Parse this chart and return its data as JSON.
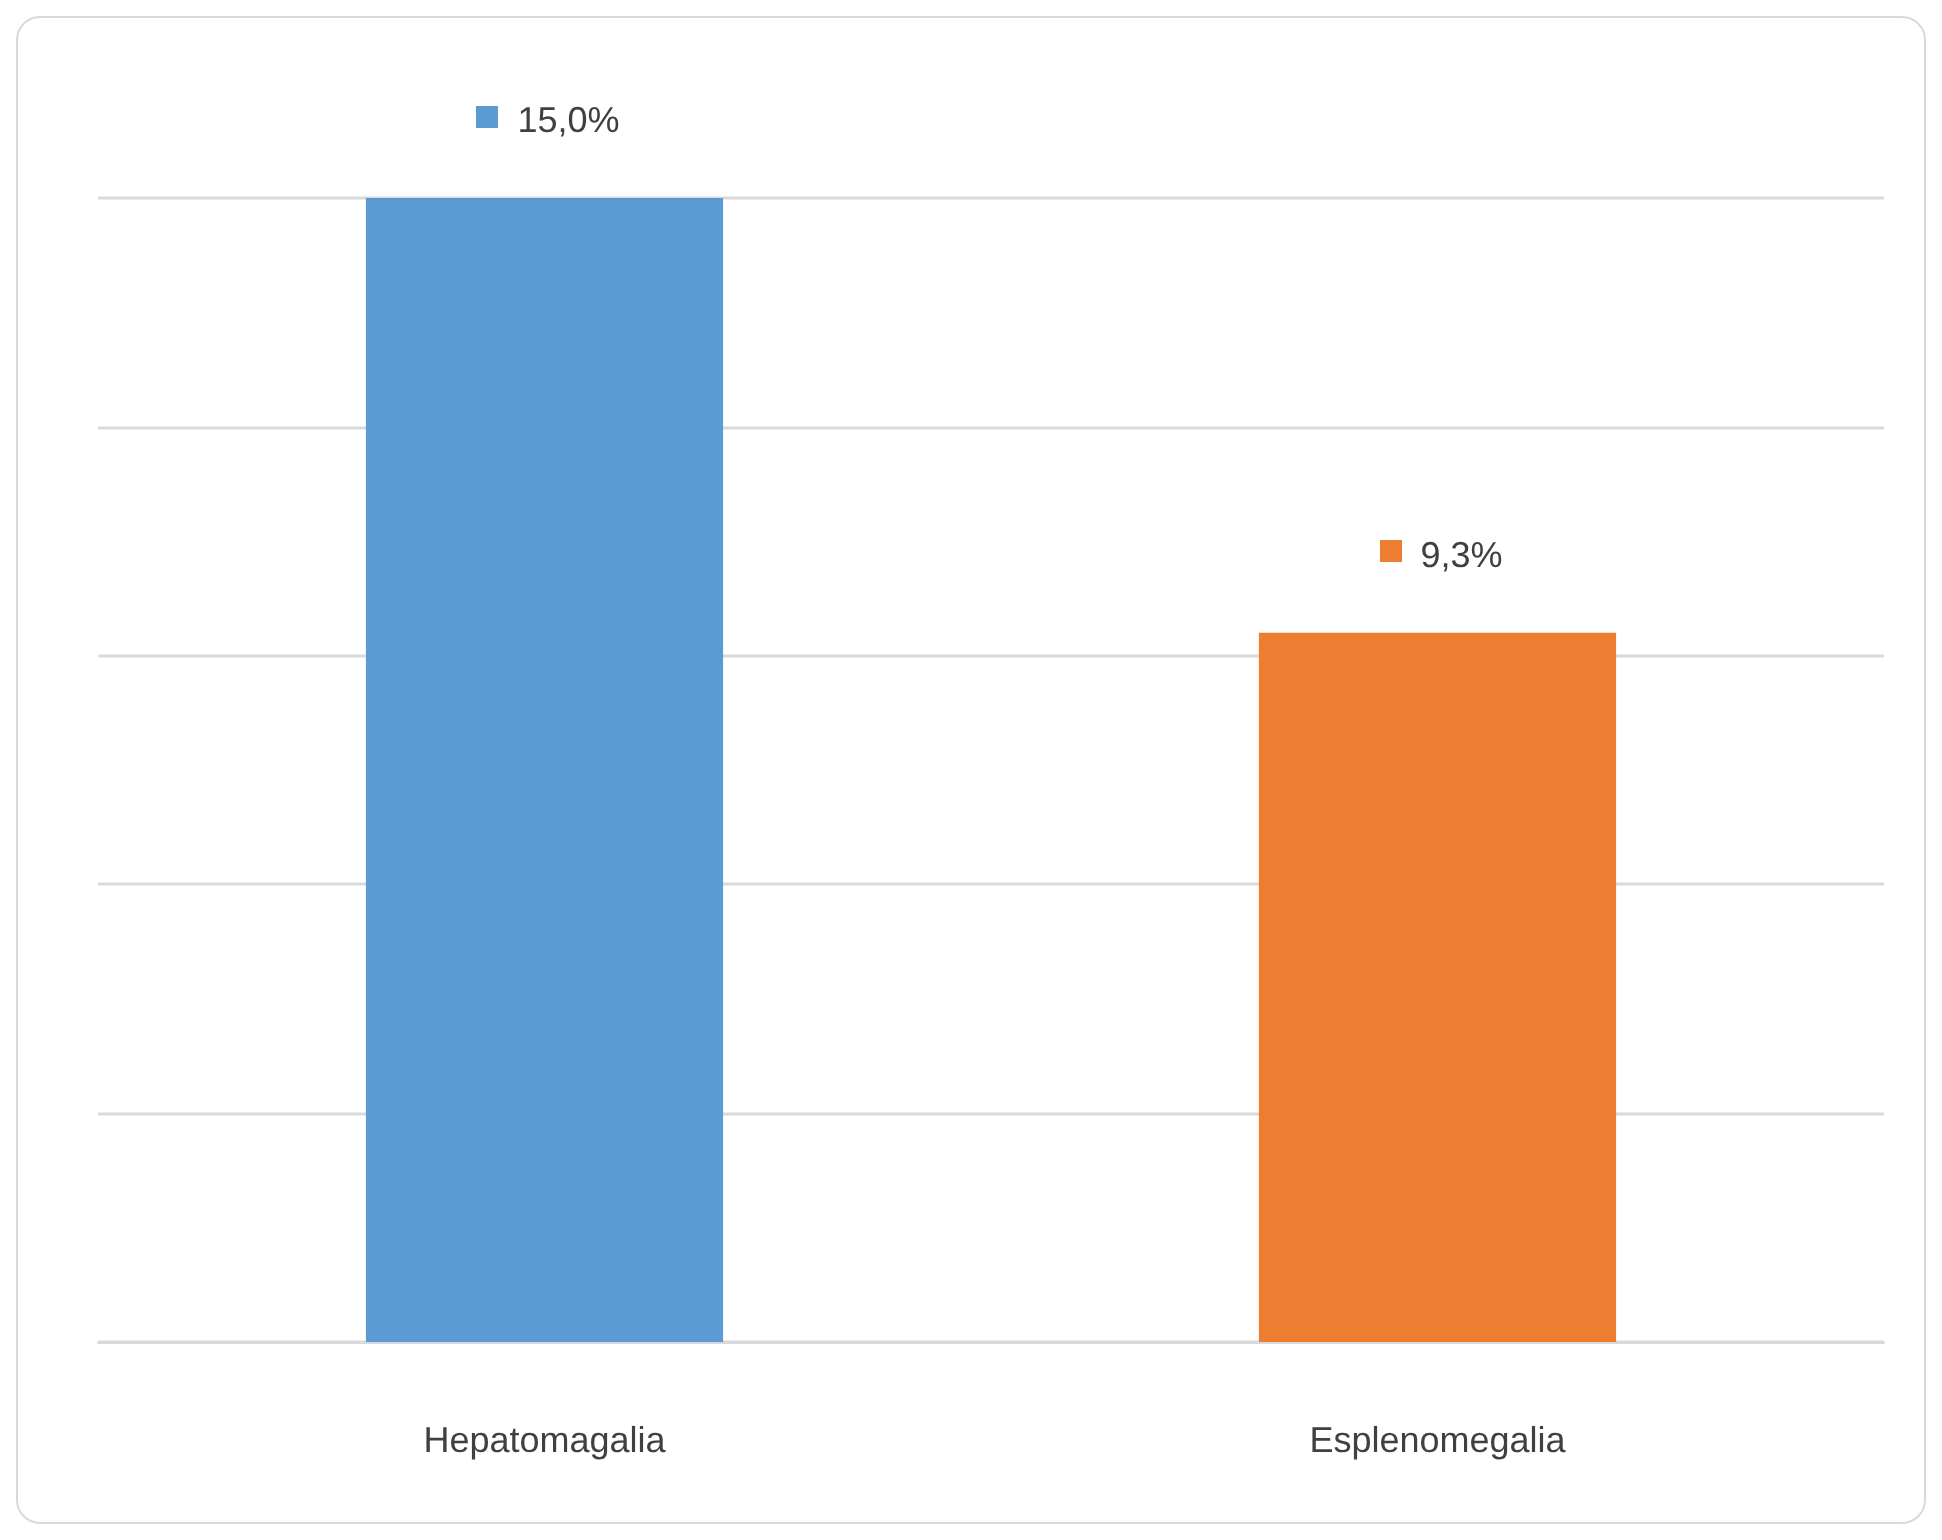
{
  "chart_data": {
    "type": "bar",
    "categories": [
      "Hepatomagalia",
      "Esplenomegalia"
    ],
    "values": [
      15.0,
      9.3
    ],
    "colors": [
      "#5b9bd5",
      "#ed7d31"
    ],
    "value_labels": [
      "15,0%",
      "9,3%"
    ],
    "grid": "y",
    "tick_labels": "x"
  }
}
